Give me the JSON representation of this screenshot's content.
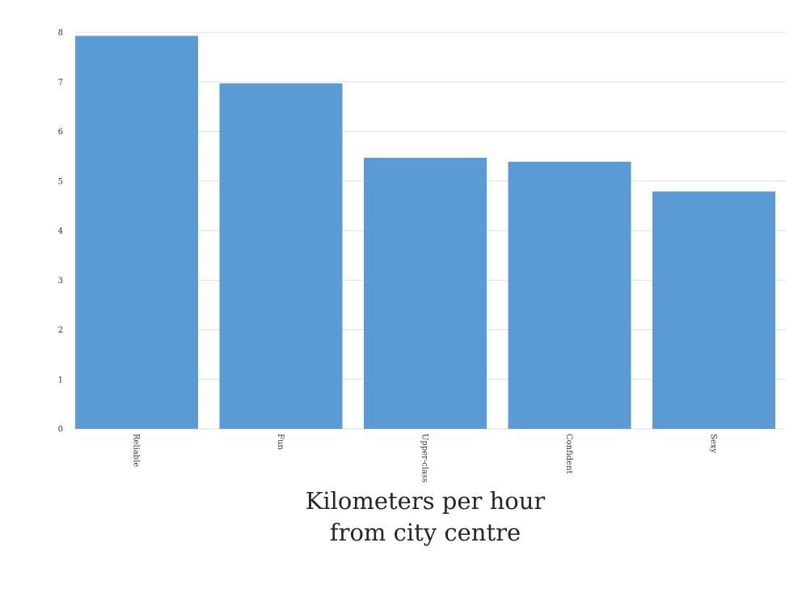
{
  "chart_data": {
    "type": "bar",
    "categories": [
      "Reliable",
      "Fun",
      "Upper-class",
      "Confident",
      "Sexy"
    ],
    "values": [
      7.93,
      6.97,
      5.47,
      5.39,
      4.79
    ],
    "xlabel": "Kilometers per hour\nfrom city centre",
    "ylabel": "",
    "ylim": [
      0,
      8
    ],
    "yticks": [
      "0",
      "1",
      "2",
      "3",
      "4",
      "5",
      "6",
      "7",
      "8"
    ],
    "grid": true,
    "legend": "none",
    "colors": {
      "bar": "#5b9bd5",
      "grid": "#dddddd"
    }
  }
}
